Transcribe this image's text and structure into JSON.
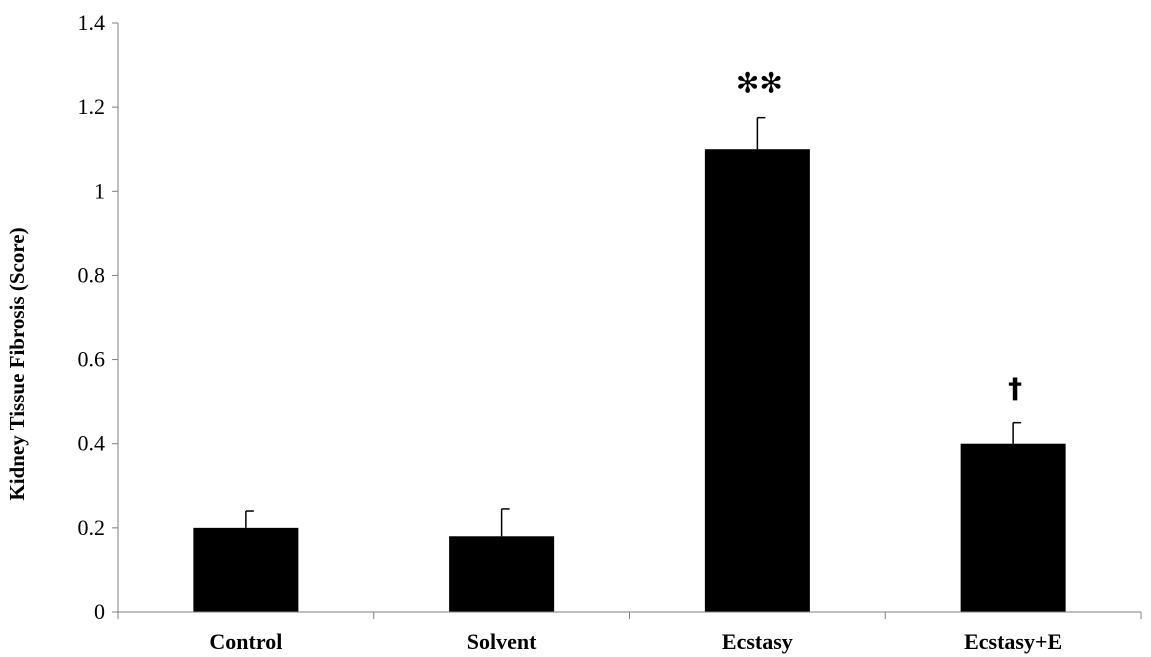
{
  "chart_data": {
    "type": "bar",
    "categories": [
      "Control",
      "Solvent",
      "Ecstasy",
      "Ecstasy+E"
    ],
    "values": [
      0.2,
      0.18,
      1.1,
      0.4
    ],
    "error_upper": [
      0.04,
      0.065,
      0.075,
      0.05
    ],
    "annotations": [
      "",
      "",
      "✻✻",
      "†"
    ],
    "ylabel": "Kidney Tissue Fibrosis (Score)",
    "xlabel": "",
    "ylim": [
      0,
      1.4
    ],
    "yticks": [
      0,
      0.2,
      0.4,
      0.6,
      0.8,
      1,
      1.2,
      1.4
    ],
    "ytick_labels": [
      "0",
      "0.2",
      "0.4",
      "0.6",
      "0.8",
      "1",
      "1.2",
      "1.4"
    ],
    "grid": false,
    "legend": "none",
    "bar_color": "#000000"
  }
}
